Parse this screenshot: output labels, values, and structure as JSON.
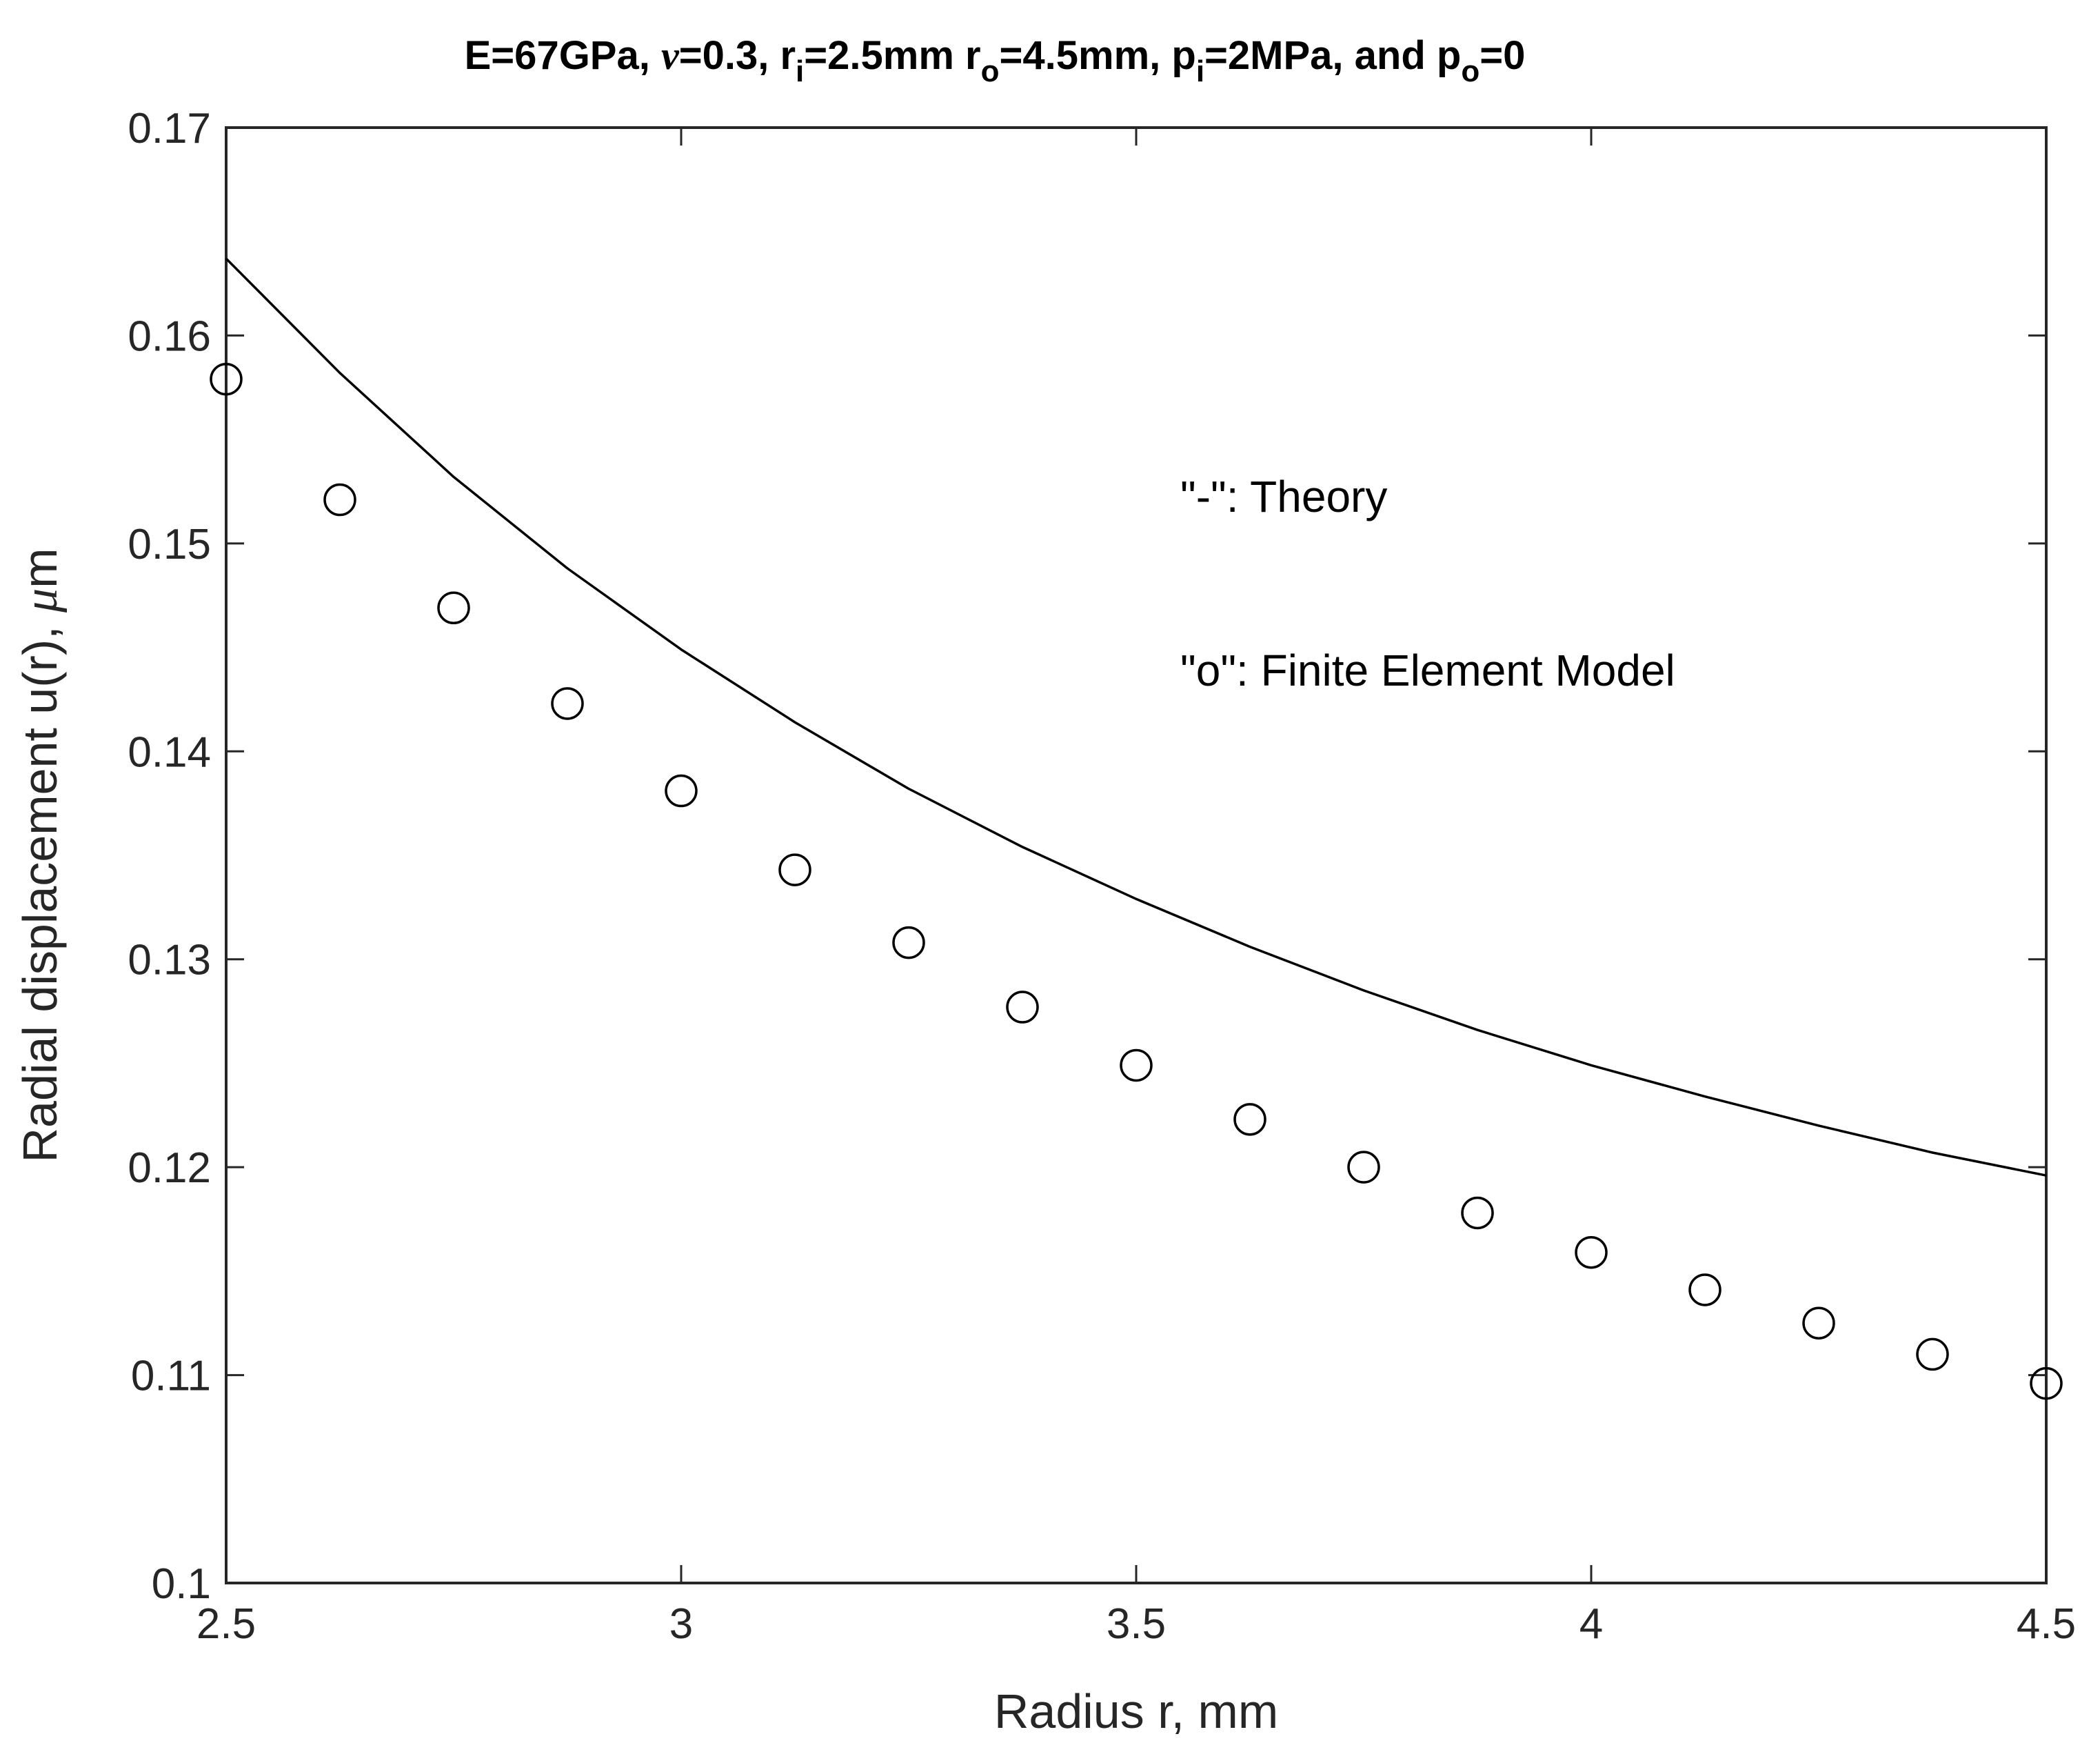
{
  "chart_data": {
    "type": "line",
    "title": {
      "seg1": "E=67GPa, ",
      "nu": "ν",
      "seg2": "=0.3, r",
      "sub_i": "i",
      "seg3": "=2.5mm r",
      "sub_o": "o",
      "seg4": "=4.5mm, p",
      "sub_pi": "i",
      "seg5": "=2MPa, and p",
      "sub_po": "o",
      "seg6": "=0"
    },
    "xlabel": "Radius r, mm",
    "ylabel": {
      "text": "Radial displacement u(r), ",
      "mu": "μ",
      "unit": "m"
    },
    "xlim": [
      2.5,
      4.5
    ],
    "ylim": [
      0.1,
      0.17
    ],
    "xticks": [
      2.5,
      3,
      3.5,
      4,
      4.5
    ],
    "xtick_labels": [
      "2.5",
      "3",
      "3.5",
      "4",
      "4.5"
    ],
    "yticks": [
      0.1,
      0.11,
      0.12,
      0.13,
      0.14,
      0.15,
      0.16,
      0.17
    ],
    "ytick_labels": [
      "0.1",
      "0.11",
      "0.12",
      "0.13",
      "0.14",
      "0.15",
      "0.16",
      "0.17"
    ],
    "grid": false,
    "annotations": [
      "\"-\": Theory",
      "\"o\": Finite Element Model"
    ],
    "series": [
      {
        "name": "Theory",
        "style": "line",
        "x": [
          2.5,
          2.625,
          2.75,
          2.875,
          3.0,
          3.125,
          3.25,
          3.375,
          3.5,
          3.625,
          3.75,
          3.875,
          4.0,
          4.125,
          4.25,
          4.375,
          4.5
        ],
        "values": [
          0.1637,
          0.1582,
          0.1532,
          0.1488,
          0.1449,
          0.1414,
          0.1382,
          0.1354,
          0.1329,
          0.1306,
          0.1285,
          0.1266,
          0.1249,
          0.1234,
          0.122,
          0.1207,
          0.1196
        ]
      },
      {
        "name": "Finite Element Model",
        "style": "marker",
        "x": [
          2.5,
          2.625,
          2.75,
          2.875,
          3.0,
          3.125,
          3.25,
          3.375,
          3.5,
          3.625,
          3.75,
          3.875,
          4.0,
          4.125,
          4.25,
          4.375,
          4.5
        ],
        "values": [
          0.1579,
          0.1521,
          0.1469,
          0.1423,
          0.1381,
          0.1343,
          0.1308,
          0.1277,
          0.1249,
          0.1223,
          0.12,
          0.1178,
          0.1159,
          0.1141,
          0.1125,
          0.111,
          0.1096
        ]
      }
    ],
    "colors": {
      "line": "#000000",
      "marker": "#000000",
      "axes": "#262626"
    }
  }
}
